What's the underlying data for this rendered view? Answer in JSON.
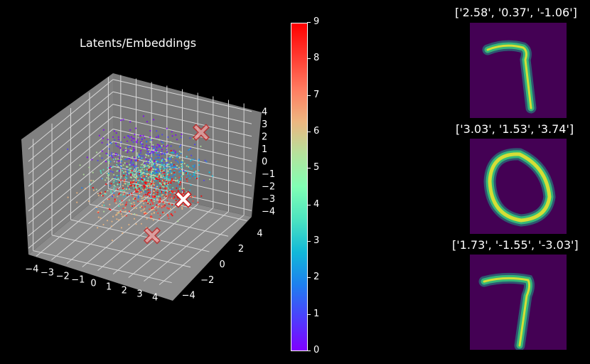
{
  "chart_data": [
    {
      "type": "scatter",
      "title": "Latents/Embeddings",
      "projection": "3d",
      "xlim": [
        -4.5,
        4.5
      ],
      "ylim": [
        -4.5,
        4.5
      ],
      "zlim": [
        -4.5,
        4.5
      ],
      "x_ticks": [
        "−4",
        "−3",
        "−2",
        "−1",
        "0",
        "1",
        "2",
        "3",
        "4"
      ],
      "y_ticks": [
        "−4",
        "−2",
        "0",
        "2",
        "4"
      ],
      "z_ticks": [
        "4",
        "3",
        "2",
        "1",
        "0",
        "−1",
        "−2",
        "−3",
        "−4"
      ],
      "grid": true,
      "pane_color": "#808080",
      "colorbar": {
        "min": 0,
        "max": 9,
        "ticks": [
          "0",
          "1",
          "2",
          "3",
          "4",
          "5",
          "6",
          "7",
          "8",
          "9"
        ],
        "colormap": "rainbow"
      },
      "clusters": [
        {
          "label": 0,
          "center": [
            -0.5,
            0.5,
            2.2
          ],
          "color": "#8000ff"
        },
        {
          "label": 1,
          "center": [
            0.5,
            0.0,
            1.8
          ],
          "color": "#4c3ffd"
        },
        {
          "label": 2,
          "center": [
            0.5,
            0.5,
            0.8
          ],
          "color": "#1e7fef"
        },
        {
          "label": 3,
          "center": [
            1.5,
            0.5,
            0.5
          ],
          "color": "#12b8d8"
        },
        {
          "label": 4,
          "center": [
            0.0,
            0.0,
            0.0
          ],
          "color": "#4ce3c0"
        },
        {
          "label": 5,
          "center": [
            0.5,
            0.0,
            0.2
          ],
          "color": "#b4e29c"
        },
        {
          "label": 6,
          "center": [
            0.0,
            0.5,
            0.6
          ],
          "color": "#b4e29c"
        },
        {
          "label": 7,
          "center": [
            -0.5,
            0.0,
            -2.2
          ],
          "color": "#edb680"
        },
        {
          "label": 8,
          "center": [
            1.0,
            0.0,
            -1.0
          ],
          "color": "#ff3a30"
        },
        {
          "label": 9,
          "center": [
            0.5,
            0.5,
            -0.8
          ],
          "color": "#ff0000"
        }
      ],
      "markers": [
        {
          "point": [
            2.58,
            0.37,
            -1.06
          ],
          "style": "white-x"
        },
        {
          "point": [
            3.03,
            1.53,
            3.74
          ],
          "style": "faded-x"
        },
        {
          "point": [
            1.73,
            -1.55,
            -3.03
          ],
          "style": "faded-x"
        }
      ]
    },
    {
      "type": "heatmap",
      "images": [
        {
          "title": "['2.58', '0.37', '-1.06']",
          "digit": "7"
        },
        {
          "title": "['3.03', '1.53', '3.74']",
          "digit": "0"
        },
        {
          "title": "['1.73', '-1.55', '-3.03']",
          "digit": "7"
        }
      ]
    }
  ]
}
